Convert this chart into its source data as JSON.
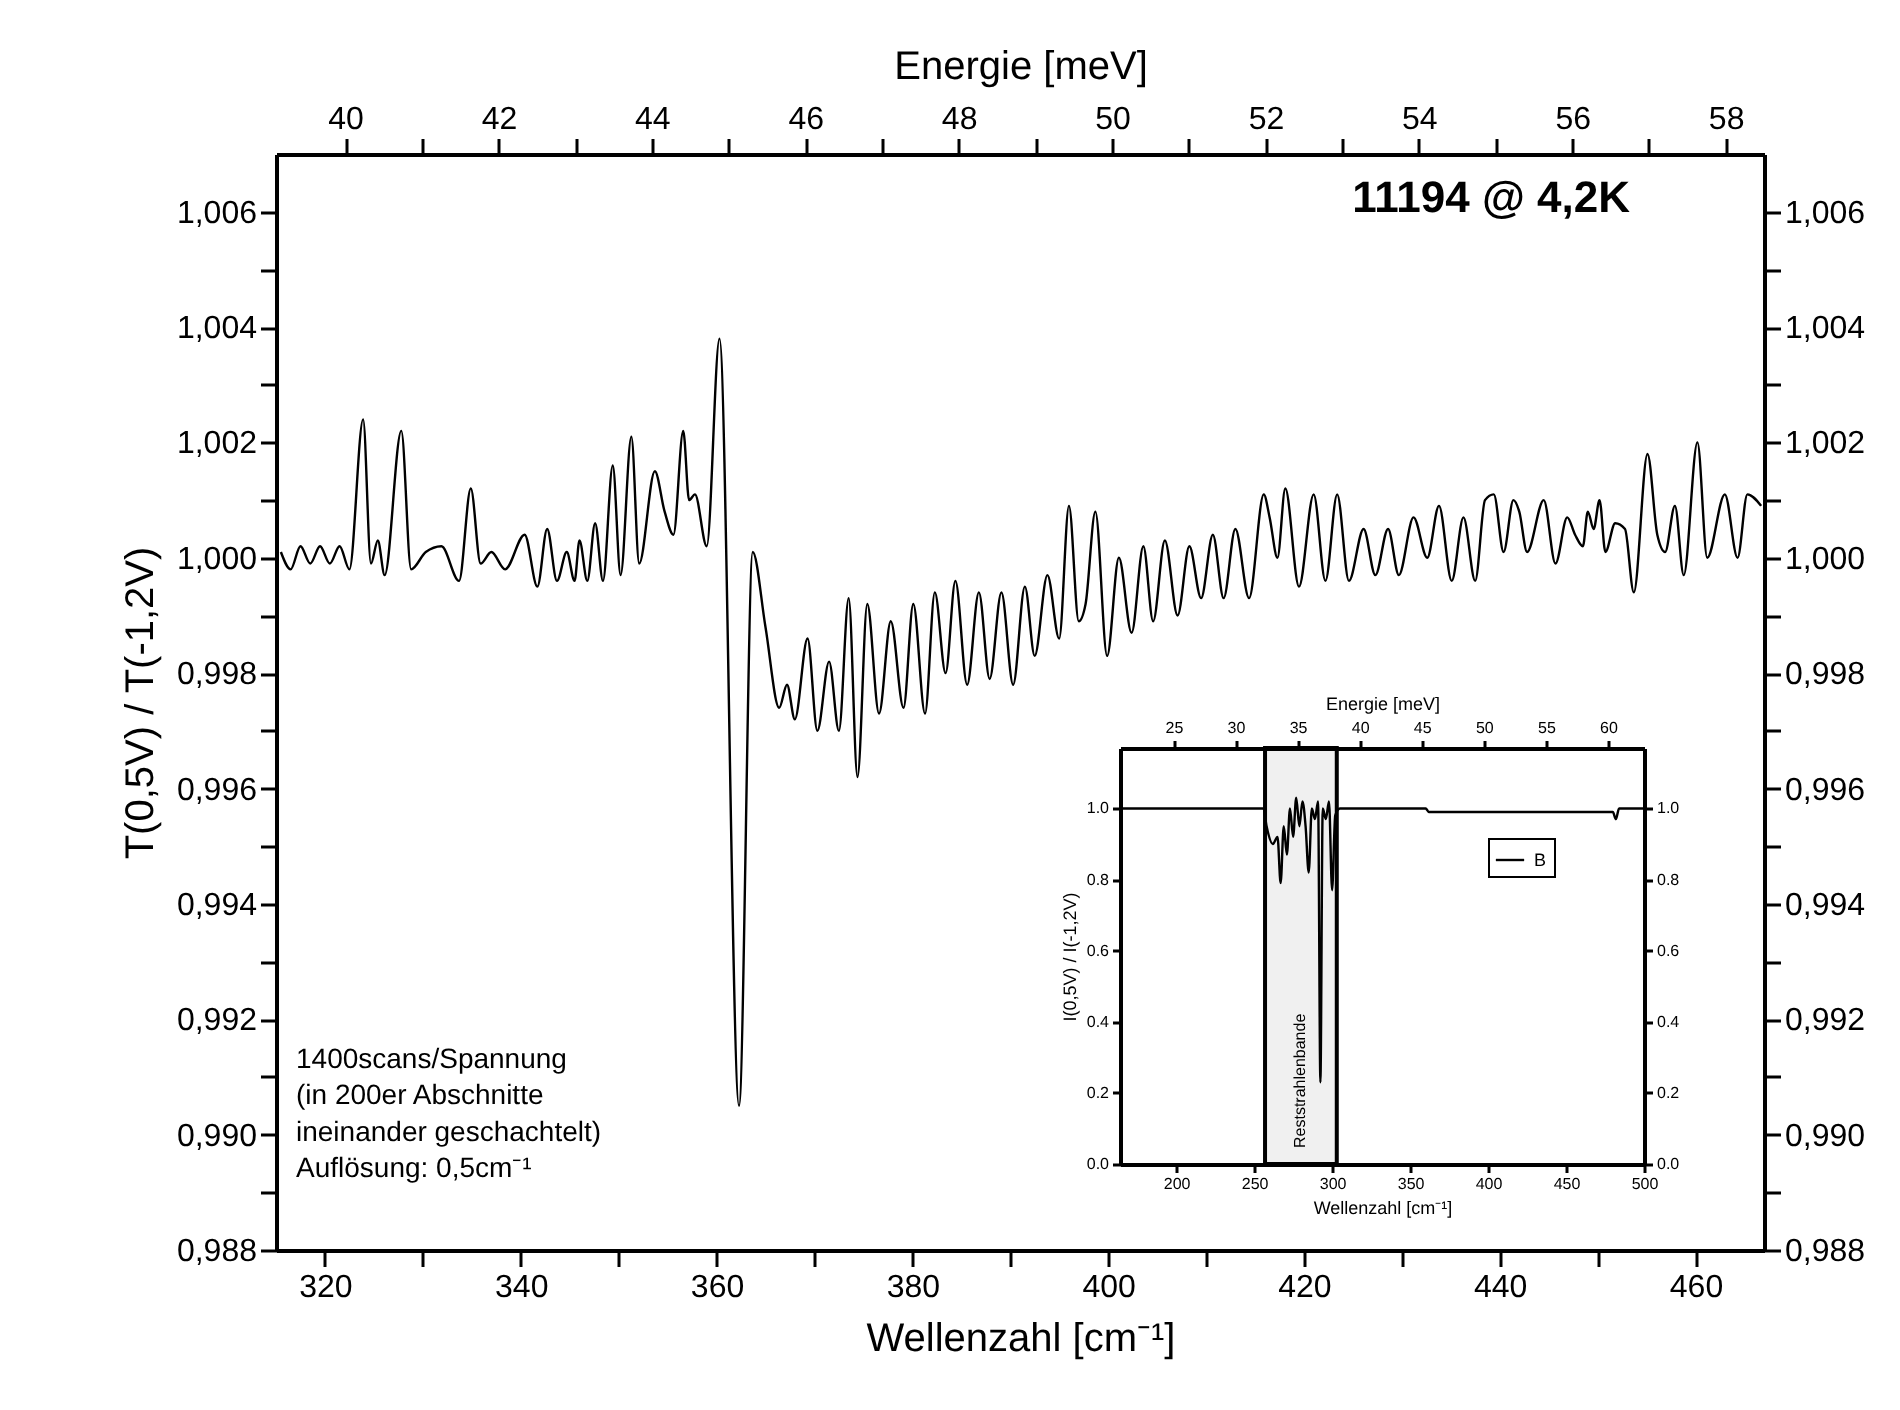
{
  "chart_data": [
    {
      "type": "line",
      "xlabel": "Wellenzahl [cm⁻¹]",
      "x2label": "Energie [meV]",
      "ylabel": "T(0,5V) / T(-1,2V)",
      "annotations": [
        "11194 @ 4,2K",
        "1400scans/Spannung\n(in 200er Abschnitte\nineinander geschachtelt)\nAuflösung: 0,5cm⁻¹"
      ],
      "x": [
        315.5,
        316.5,
        317.5,
        318.5,
        319.5,
        320.5,
        321.5,
        322.5,
        323.9,
        324.7,
        325.4,
        326.1,
        327.8,
        328.8,
        330.3,
        331.9,
        333.7,
        334.9,
        335.9,
        337.0,
        338.4,
        340.4,
        341.7,
        342.7,
        343.7,
        344.7,
        345.5,
        346.0,
        346.8,
        347.6,
        348.4,
        349.4,
        350.2,
        351.3,
        352.1,
        353.7,
        354.7,
        355.6,
        356.6,
        357.2,
        357.8,
        359.0,
        360.3,
        362.3,
        363.7,
        365.0,
        366.4,
        367.2,
        368.0,
        369.3,
        370.3,
        371.5,
        372.5,
        373.5,
        374.4,
        375.4,
        376.6,
        377.8,
        379.1,
        380.1,
        381.3,
        382.3,
        383.4,
        384.4,
        385.6,
        386.8,
        387.9,
        389.1,
        390.3,
        391.5,
        392.5,
        393.8,
        395.0,
        396.0,
        397.0,
        397.7,
        398.7,
        399.9,
        401.1,
        402.4,
        403.6,
        404.6,
        405.8,
        407.1,
        408.3,
        409.5,
        410.7,
        411.8,
        413.0,
        414.4,
        415.9,
        416.5,
        417.3,
        418.1,
        419.5,
        421.0,
        422.2,
        423.4,
        424.6,
        426.1,
        427.3,
        428.6,
        429.7,
        431.2,
        432.6,
        433.8,
        435.1,
        436.3,
        437.5,
        438.5,
        439.4,
        440.4,
        441.4,
        442.0,
        442.8,
        444.5,
        445.7,
        446.9,
        447.7,
        448.5,
        449.0,
        449.6,
        450.2,
        450.8,
        451.8,
        452.8,
        453.7,
        455.1,
        456.1,
        456.9,
        457.9,
        458.8,
        460.2,
        461.2,
        463.0,
        464.3,
        465.3,
        466.7
      ],
      "series": [
        {
          "color": "#000000",
          "values": [
            1.0001,
            0.9998,
            1.0002,
            0.9999,
            1.0002,
            0.9999,
            1.0002,
            0.9998,
            1.0024,
            0.9999,
            1.0003,
            0.9997,
            1.0022,
            0.9998,
            1.0001,
            1.0002,
            0.9996,
            1.0012,
            0.9999,
            1.0001,
            0.9998,
            1.0004,
            0.9995,
            1.0005,
            0.9996,
            1.0001,
            0.9996,
            1.0003,
            0.9996,
            1.0006,
            0.9996,
            1.0016,
            0.9997,
            1.0021,
            0.9999,
            1.0015,
            1.0008,
            1.0004,
            1.0022,
            1.001,
            1.0011,
            1.0002,
            1.0038,
            0.9905,
            1.0001,
            0.9988,
            0.9974,
            0.9978,
            0.9972,
            0.9986,
            0.997,
            0.9982,
            0.997,
            0.9993,
            0.9962,
            0.9992,
            0.9973,
            0.9989,
            0.9974,
            0.9992,
            0.9973,
            0.9994,
            0.998,
            0.9996,
            0.9978,
            0.9994,
            0.9979,
            0.9994,
            0.9978,
            0.9995,
            0.9983,
            0.9997,
            0.9986,
            1.0009,
            0.9989,
            0.9992,
            1.0008,
            0.9983,
            1.0,
            0.9987,
            1.0002,
            0.9989,
            1.0003,
            0.999,
            1.0002,
            0.9993,
            1.0004,
            0.9993,
            1.0005,
            0.9993,
            1.0011,
            1.0007,
            1.0,
            1.0012,
            0.9995,
            1.0011,
            0.9996,
            1.0011,
            0.9996,
            1.0005,
            0.9997,
            1.0005,
            0.9997,
            1.0007,
            1.0,
            1.0009,
            0.9996,
            1.0007,
            0.9996,
            1.001,
            1.0011,
            1.0001,
            1.001,
            1.0008,
            1.0001,
            1.001,
            0.9999,
            1.0007,
            1.0004,
            1.0002,
            1.0008,
            1.0005,
            1.001,
            1.0001,
            1.0006,
            1.0005,
            0.9994,
            1.0018,
            1.0004,
            1.0001,
            1.0009,
            0.9997,
            1.002,
            1.0,
            1.0011,
            1.0,
            1.0011,
            1.0009
          ]
        }
      ],
      "xlim": [
        315,
        467
      ],
      "xticks": [
        320,
        {
          "value": 330,
          "label": null
        },
        340,
        {
          "value": 350,
          "label": null
        },
        360,
        {
          "value": 370,
          "label": null
        },
        380,
        {
          "value": 390,
          "label": null
        },
        400,
        {
          "value": 410,
          "label": null
        },
        420,
        {
          "value": 430,
          "label": null
        },
        440,
        {
          "value": 450,
          "label": null
        },
        460
      ],
      "x2lim": [
        39.1,
        58.5
      ],
      "x2ticks": [
        40,
        {
          "value": 41,
          "label": null
        },
        42,
        {
          "value": 43,
          "label": null
        },
        44,
        {
          "value": 45,
          "label": null
        },
        46,
        {
          "value": 47,
          "label": null
        },
        48,
        {
          "value": 49,
          "label": null
        },
        50,
        {
          "value": 51,
          "label": null
        },
        52,
        {
          "value": 53,
          "label": null
        },
        54,
        {
          "value": 55,
          "label": null
        },
        56,
        {
          "value": 57,
          "label": null
        },
        58
      ],
      "ylim": [
        0.988,
        1.007
      ],
      "yticks": [
        {
          "value": 0.988,
          "label": "0,988"
        },
        {
          "value": 0.989,
          "label": null
        },
        {
          "value": 0.99,
          "label": "0,990"
        },
        {
          "value": 0.991,
          "label": null
        },
        {
          "value": 0.992,
          "label": "0,992"
        },
        {
          "value": 0.993,
          "label": null
        },
        {
          "value": 0.994,
          "label": "0,994"
        },
        {
          "value": 0.995,
          "label": null
        },
        {
          "value": 0.996,
          "label": "0,996"
        },
        {
          "value": 0.997,
          "label": null
        },
        {
          "value": 0.998,
          "label": "0,998"
        },
        {
          "value": 0.999,
          "label": null
        },
        {
          "value": 1,
          "label": "1,000"
        },
        {
          "value": 1.001,
          "label": null
        },
        {
          "value": 1.002,
          "label": "1,002"
        },
        {
          "value": 1.003,
          "label": null
        },
        {
          "value": 1.004,
          "label": "1,004"
        },
        {
          "value": 1.005,
          "label": null
        },
        {
          "value": 1.006,
          "label": "1,006"
        }
      ],
      "y2lim": [
        0.988,
        1.007
      ],
      "y2ticks": [
        {
          "value": 0.988,
          "label": "0,988"
        },
        {
          "value": 0.989,
          "label": null
        },
        {
          "value": 0.99,
          "label": "0,990"
        },
        {
          "value": 0.991,
          "label": null
        },
        {
          "value": 0.992,
          "label": "0,992"
        },
        {
          "value": 0.993,
          "label": null
        },
        {
          "value": 0.994,
          "label": "0,994"
        },
        {
          "value": 0.995,
          "label": null
        },
        {
          "value": 0.996,
          "label": "0,996"
        },
        {
          "value": 0.997,
          "label": null
        },
        {
          "value": 0.998,
          "label": "0,998"
        },
        {
          "value": 0.999,
          "label": null
        },
        {
          "value": 1,
          "label": "1,000"
        },
        {
          "value": 1.001,
          "label": null
        },
        {
          "value": 1.002,
          "label": "1,002"
        },
        {
          "value": 1.003,
          "label": null
        },
        {
          "value": 1.004,
          "label": "1,004"
        },
        {
          "value": 1.005,
          "label": null
        },
        {
          "value": 1.006,
          "label": "1,006"
        }
      ]
    },
    {
      "type": "line",
      "xlabel": "Wellenzahl [cm⁻¹]",
      "x2label": "Energie [meV]",
      "ylabel": "I(0,5V) / I(-1,2V)",
      "x": [
        164,
        200,
        250,
        256,
        258,
        262,
        265,
        267,
        269,
        271,
        273,
        275,
        277,
        279,
        281,
        283,
        285,
        287,
        289,
        291,
        292.5,
        294,
        296,
        298,
        300,
        302,
        305,
        310,
        360,
        362,
        400,
        480,
        482,
        484,
        500
      ],
      "series": [
        {
          "name": "B",
          "color": "#000000",
          "values": [
            1.0,
            1.0,
            1.0,
            1.0,
            0.95,
            0.9,
            0.92,
            0.79,
            0.95,
            0.87,
            1.0,
            0.92,
            1.03,
            0.95,
            1.02,
            0.95,
            0.82,
            1.0,
            0.97,
            1.02,
            0.23,
            1.0,
            0.97,
            1.02,
            0.77,
            0.98,
            1.0,
            1.0,
            1.0,
            0.99,
            0.99,
            0.99,
            0.97,
            1.0,
            1.0
          ]
        }
      ],
      "xlim": [
        164,
        500
      ],
      "xticks": [
        200,
        250,
        300,
        350,
        400,
        450,
        500
      ],
      "x2lim": [
        20.7,
        62.9
      ],
      "x2ticks": [
        25,
        30,
        35,
        40,
        45,
        50,
        55,
        60
      ],
      "ylim": [
        0,
        1.17
      ],
      "yticks": [
        {
          "value": 0,
          "label": "0.0"
        },
        0.2,
        0.4,
        0.6,
        0.8,
        {
          "value": 1,
          "label": "1.0"
        }
      ],
      "y2lim": [
        0,
        1.17
      ],
      "y2ticks": [
        {
          "value": 0,
          "label": "0.0"
        },
        0.2,
        0.4,
        0.6,
        0.8,
        {
          "value": 1,
          "label": "1.0"
        }
      ],
      "bands": [
        {
          "axis": "x",
          "from": 257,
          "to": 303,
          "label": "Reststrahlenbande"
        }
      ],
      "legend": "top right"
    }
  ]
}
